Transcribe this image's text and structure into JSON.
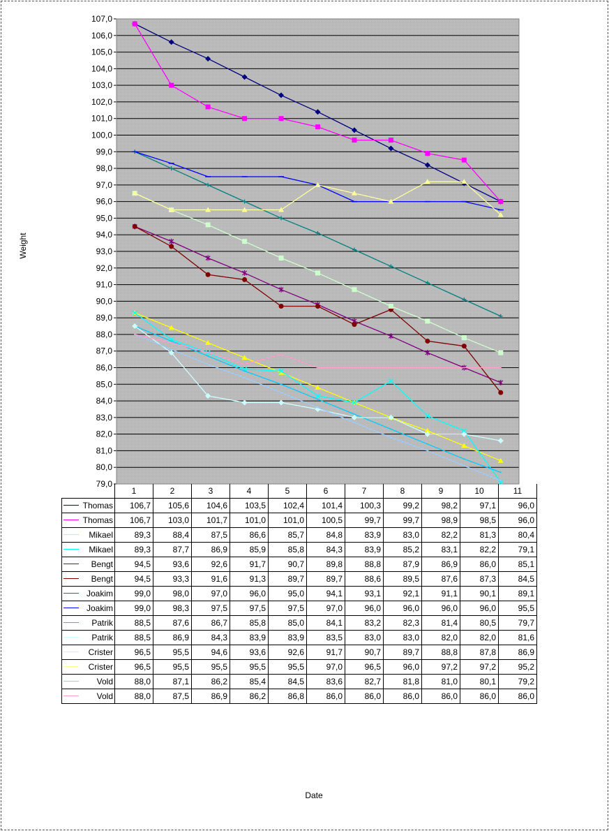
{
  "chart_data": {
    "type": "line",
    "xlabel": "Date",
    "ylabel": "Weight",
    "ylim": [
      79.0,
      107.0
    ],
    "ystep": 1.0,
    "grid": true,
    "plot_background": "#c0c0c0",
    "categories": [
      "1",
      "2",
      "3",
      "4",
      "5",
      "6",
      "7",
      "8",
      "9",
      "10",
      "11"
    ],
    "y_ticks": [
      "107,0",
      "106,0",
      "105,0",
      "104,0",
      "103,0",
      "102,0",
      "101,0",
      "100,0",
      "99,0",
      "98,0",
      "97,0",
      "96,0",
      "95,0",
      "94,0",
      "93,0",
      "92,0",
      "91,0",
      "90,0",
      "89,0",
      "88,0",
      "87,0",
      "86,0",
      "85,0",
      "84,0",
      "83,0",
      "82,0",
      "81,0",
      "80,0",
      "79,0"
    ],
    "series": [
      {
        "name": "Thomas",
        "color": "#000080",
        "marker": "diamond",
        "values": [
          106.7,
          105.6,
          104.6,
          103.5,
          102.4,
          101.4,
          100.3,
          99.2,
          98.2,
          97.1,
          96.0
        ],
        "labels": [
          "106,7",
          "105,6",
          "104,6",
          "103,5",
          "102,4",
          "101,4",
          "100,3",
          "99,2",
          "98,2",
          "97,1",
          "96,0"
        ]
      },
      {
        "name": "Thomas",
        "color": "#ff00ff",
        "marker": "square",
        "values": [
          106.7,
          103.0,
          101.7,
          101.0,
          101.0,
          100.5,
          99.7,
          99.7,
          98.9,
          98.5,
          96.0
        ],
        "labels": [
          "106,7",
          "103,0",
          "101,7",
          "101,0",
          "101,0",
          "100,5",
          "99,7",
          "99,7",
          "98,9",
          "98,5",
          "96,0"
        ]
      },
      {
        "name": "Mikael",
        "color": "#ffff00",
        "marker": "triangle",
        "values": [
          89.3,
          88.4,
          87.5,
          86.6,
          85.7,
          84.8,
          83.9,
          83.0,
          82.2,
          81.3,
          80.4
        ],
        "labels": [
          "89,3",
          "88,4",
          "87,5",
          "86,6",
          "85,7",
          "84,8",
          "83,9",
          "83,0",
          "82,2",
          "81,3",
          "80,4"
        ]
      },
      {
        "name": "Mikael",
        "color": "#00ffff",
        "marker": "x",
        "values": [
          89.3,
          87.7,
          86.9,
          85.9,
          85.8,
          84.3,
          83.9,
          85.2,
          83.1,
          82.2,
          79.1
        ],
        "labels": [
          "89,3",
          "87,7",
          "86,9",
          "85,9",
          "85,8",
          "84,3",
          "83,9",
          "85,2",
          "83,1",
          "82,2",
          "79,1"
        ]
      },
      {
        "name": "Bengt",
        "color": "#800080",
        "marker": "star",
        "values": [
          94.5,
          93.6,
          92.6,
          91.7,
          90.7,
          89.8,
          88.8,
          87.9,
          86.9,
          86.0,
          85.1
        ],
        "labels": [
          "94,5",
          "93,6",
          "92,6",
          "91,7",
          "90,7",
          "89,8",
          "88,8",
          "87,9",
          "86,9",
          "86,0",
          "85,1"
        ]
      },
      {
        "name": "Bengt",
        "color": "#800000",
        "marker": "circle",
        "values": [
          94.5,
          93.3,
          91.6,
          91.3,
          89.7,
          89.7,
          88.6,
          89.5,
          87.6,
          87.3,
          84.5
        ],
        "labels": [
          "94,5",
          "93,3",
          "91,6",
          "91,3",
          "89,7",
          "89,7",
          "88,6",
          "89,5",
          "87,6",
          "87,3",
          "84,5"
        ]
      },
      {
        "name": "Joakim",
        "color": "#008080",
        "marker": "plus",
        "values": [
          99.0,
          98.0,
          97.0,
          96.0,
          95.0,
          94.1,
          93.1,
          92.1,
          91.1,
          90.1,
          89.1
        ],
        "labels": [
          "99,0",
          "98,0",
          "97,0",
          "96,0",
          "95,0",
          "94,1",
          "93,1",
          "92,1",
          "91,1",
          "90,1",
          "89,1"
        ]
      },
      {
        "name": "Joakim",
        "color": "#0000ff",
        "marker": "dash",
        "values": [
          99.0,
          98.3,
          97.5,
          97.5,
          97.5,
          97.0,
          96.0,
          96.0,
          96.0,
          96.0,
          95.5
        ],
        "labels": [
          "99,0",
          "98,3",
          "97,5",
          "97,5",
          "97,5",
          "97,0",
          "96,0",
          "96,0",
          "96,0",
          "96,0",
          "95,5"
        ]
      },
      {
        "name": "Patrik",
        "color": "#00ccff",
        "marker": "none",
        "values": [
          88.5,
          87.6,
          86.7,
          85.8,
          85.0,
          84.1,
          83.2,
          82.3,
          81.4,
          80.5,
          79.7
        ],
        "labels": [
          "88,5",
          "87,6",
          "86,7",
          "85,8",
          "85,0",
          "84,1",
          "83,2",
          "82,3",
          "81,4",
          "80,5",
          "79,7"
        ]
      },
      {
        "name": "Patrik",
        "color": "#ccffff",
        "marker": "diamond",
        "values": [
          88.5,
          86.9,
          84.3,
          83.9,
          83.9,
          83.5,
          83.0,
          83.0,
          82.0,
          82.0,
          81.6
        ],
        "labels": [
          "88,5",
          "86,9",
          "84,3",
          "83,9",
          "83,9",
          "83,5",
          "83,0",
          "83,0",
          "82,0",
          "82,0",
          "81,6"
        ]
      },
      {
        "name": "Crister",
        "color": "#ccffcc",
        "marker": "square",
        "values": [
          96.5,
          95.5,
          94.6,
          93.6,
          92.6,
          91.7,
          90.7,
          89.7,
          88.8,
          87.8,
          86.9
        ],
        "labels": [
          "96,5",
          "95,5",
          "94,6",
          "93,6",
          "92,6",
          "91,7",
          "90,7",
          "89,7",
          "88,8",
          "87,8",
          "86,9"
        ]
      },
      {
        "name": "Crister",
        "color": "#ffff99",
        "marker": "triangle",
        "values": [
          96.5,
          95.5,
          95.5,
          95.5,
          95.5,
          97.0,
          96.5,
          96.0,
          97.2,
          97.2,
          95.2
        ],
        "labels": [
          "96,5",
          "95,5",
          "95,5",
          "95,5",
          "95,5",
          "97,0",
          "96,5",
          "96,0",
          "97,2",
          "97,2",
          "95,2"
        ]
      },
      {
        "name": "Vold",
        "color": "#99ccff",
        "marker": "none",
        "values": [
          88.0,
          87.1,
          86.2,
          85.4,
          84.5,
          83.6,
          82.7,
          81.8,
          81.0,
          80.1,
          79.2
        ],
        "labels": [
          "88,0",
          "87,1",
          "86,2",
          "85,4",
          "84,5",
          "83,6",
          "82,7",
          "81,8",
          "81,0",
          "80,1",
          "79,2"
        ]
      },
      {
        "name": "Vold",
        "color": "#ff99cc",
        "marker": "none",
        "values": [
          88.0,
          87.5,
          86.9,
          86.2,
          86.8,
          86.0,
          86.0,
          86.0,
          86.0,
          86.0,
          86.0
        ],
        "labels": [
          "88,0",
          "87,5",
          "86,9",
          "86,2",
          "86,8",
          "86,0",
          "86,0",
          "86,0",
          "86,0",
          "86,0",
          "86,0"
        ]
      }
    ]
  }
}
